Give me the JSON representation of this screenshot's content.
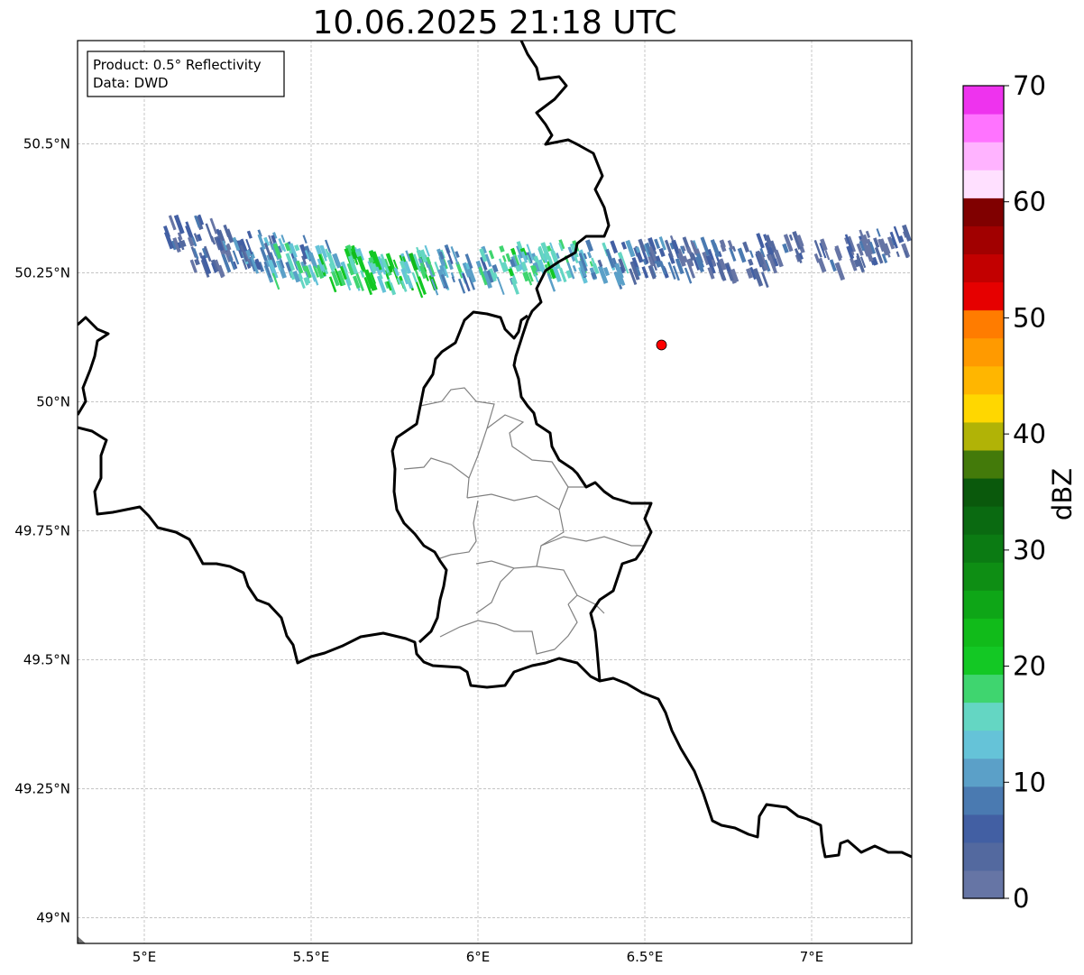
{
  "title": "10.06.2025 21:18 UTC",
  "info_box": {
    "product": "Product: 0.5° Reflectivity",
    "data": "Data: DWD"
  },
  "map": {
    "extent": {
      "lon": [
        4.8,
        7.3
      ],
      "lat": [
        48.95,
        50.7
      ]
    },
    "grid": true,
    "lon_ticks": [
      {
        "value": 5.0,
        "label": "5°E"
      },
      {
        "value": 5.5,
        "label": "5.5°E"
      },
      {
        "value": 6.0,
        "label": "6°E"
      },
      {
        "value": 6.5,
        "label": "6.5°E"
      },
      {
        "value": 7.0,
        "label": "7°E"
      }
    ],
    "lat_ticks": [
      {
        "value": 50.5,
        "label": "50.5°N"
      },
      {
        "value": 50.25,
        "label": "50.25°N"
      },
      {
        "value": 50.0,
        "label": "50°N"
      },
      {
        "value": 49.75,
        "label": "49.75°N"
      },
      {
        "value": 49.5,
        "label": "49.5°N"
      },
      {
        "value": 49.25,
        "label": "49.25°N"
      },
      {
        "value": 49.0,
        "label": "49°N"
      }
    ],
    "radar_site": {
      "lon": 6.55,
      "lat": 50.11,
      "color": "#ff0000"
    },
    "country_border_color": "#000000",
    "admin_border_color": "#808080"
  },
  "colorbar": {
    "label": "dBZ",
    "min": 0,
    "max": 70,
    "ticks": [
      {
        "value": 0,
        "label": "0"
      },
      {
        "value": 10,
        "label": "10"
      },
      {
        "value": 20,
        "label": "20"
      },
      {
        "value": 30,
        "label": "30"
      },
      {
        "value": 40,
        "label": "40"
      },
      {
        "value": 50,
        "label": "50"
      },
      {
        "value": 60,
        "label": "60"
      },
      {
        "value": 70,
        "label": "70"
      }
    ],
    "colors": [
      "#6675a5",
      "#53699f",
      "#425fa3",
      "#4a7ab1",
      "#5ba0c8",
      "#65c3d8",
      "#64d6c3",
      "#3fd56f",
      "#13c824",
      "#11bb1a",
      "#0ea617",
      "#0e8e14",
      "#0b7b13",
      "#0a6a11",
      "#0a590c",
      "#437a0a",
      "#b1b306",
      "#ffd700",
      "#ffb600",
      "#ff9a00",
      "#ff7c00",
      "#e60000",
      "#c20000",
      "#a10000",
      "#800000",
      "#ffe0ff",
      "#ffb3ff",
      "#ff73ff",
      "#ee33ee"
    ]
  },
  "radar_echo_band": {
    "description_units": "reflectivity dBZ",
    "cells": [
      {
        "lon": 5.15,
        "lat": 50.33,
        "dbz": 8
      },
      {
        "lon": 5.22,
        "lat": 50.29,
        "dbz": 9
      },
      {
        "lon": 5.3,
        "lat": 50.3,
        "dbz": 12
      },
      {
        "lon": 5.38,
        "lat": 50.29,
        "dbz": 14
      },
      {
        "lon": 5.45,
        "lat": 50.28,
        "dbz": 18
      },
      {
        "lon": 5.52,
        "lat": 50.27,
        "dbz": 20
      },
      {
        "lon": 5.6,
        "lat": 50.27,
        "dbz": 22
      },
      {
        "lon": 5.68,
        "lat": 50.26,
        "dbz": 23
      },
      {
        "lon": 5.76,
        "lat": 50.26,
        "dbz": 23
      },
      {
        "lon": 5.85,
        "lat": 50.27,
        "dbz": 20
      },
      {
        "lon": 5.95,
        "lat": 50.27,
        "dbz": 16
      },
      {
        "lon": 6.05,
        "lat": 50.27,
        "dbz": 18
      },
      {
        "lon": 6.15,
        "lat": 50.28,
        "dbz": 21
      },
      {
        "lon": 6.25,
        "lat": 50.28,
        "dbz": 20
      },
      {
        "lon": 6.35,
        "lat": 50.28,
        "dbz": 17
      },
      {
        "lon": 6.45,
        "lat": 50.29,
        "dbz": 12
      },
      {
        "lon": 6.55,
        "lat": 50.29,
        "dbz": 11
      },
      {
        "lon": 6.65,
        "lat": 50.29,
        "dbz": 10
      },
      {
        "lon": 6.78,
        "lat": 50.28,
        "dbz": 9
      },
      {
        "lon": 6.92,
        "lat": 50.3,
        "dbz": 8
      },
      {
        "lon": 7.1,
        "lat": 50.3,
        "dbz": 8
      },
      {
        "lon": 7.22,
        "lat": 50.31,
        "dbz": 9
      }
    ]
  }
}
